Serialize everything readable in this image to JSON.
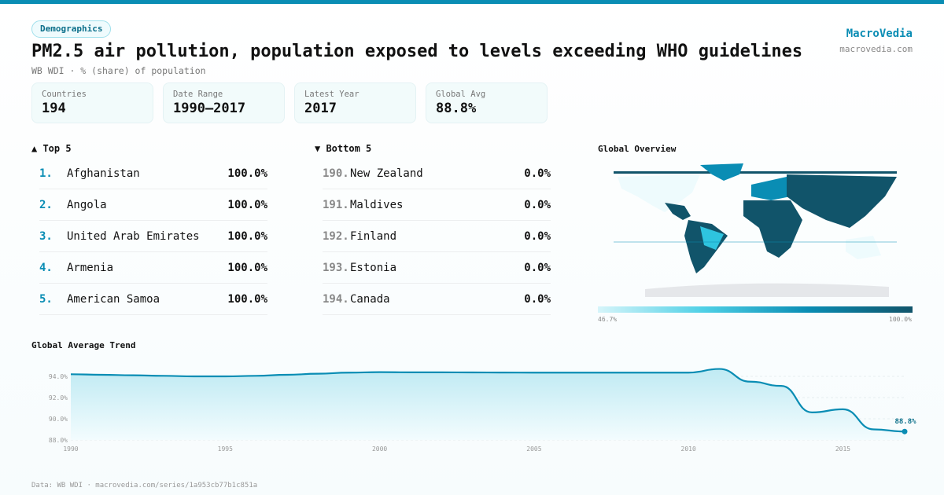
{
  "header": {
    "badge": "Demographics",
    "title": "PM2.5 air pollution, population exposed to levels exceeding WHO guidelines",
    "subtitle": "WB WDI · % (share) of population",
    "brand": "MacroVedia",
    "brand_url": "macrovedia.com"
  },
  "stats": [
    {
      "label": "Countries",
      "value": "194"
    },
    {
      "label": "Date Range",
      "value": "1990–2017"
    },
    {
      "label": "Latest Year",
      "value": "2017"
    },
    {
      "label": "Global Avg",
      "value": "88.8%"
    }
  ],
  "top5": {
    "heading": "▲ Top 5",
    "items": [
      {
        "rank": "1.",
        "name": "Afghanistan",
        "value": "100.0%"
      },
      {
        "rank": "2.",
        "name": "Angola",
        "value": "100.0%"
      },
      {
        "rank": "3.",
        "name": "United Arab Emirates",
        "value": "100.0%"
      },
      {
        "rank": "4.",
        "name": "Armenia",
        "value": "100.0%"
      },
      {
        "rank": "5.",
        "name": "American Samoa",
        "value": "100.0%"
      }
    ]
  },
  "bottom5": {
    "heading": "▼ Bottom 5",
    "items": [
      {
        "rank": "190.",
        "name": "New Zealand",
        "value": "0.0%"
      },
      {
        "rank": "191.",
        "name": "Maldives",
        "value": "0.0%"
      },
      {
        "rank": "192.",
        "name": "Finland",
        "value": "0.0%"
      },
      {
        "rank": "193.",
        "name": "Estonia",
        "value": "0.0%"
      },
      {
        "rank": "194.",
        "name": "Canada",
        "value": "0.0%"
      }
    ]
  },
  "map": {
    "heading": "Global Overview",
    "legend_min": "46.7%",
    "legend_max": "100.0%",
    "colors": {
      "low": "#d6f5fa",
      "mid": "#0a8db4",
      "high": "#11546a",
      "nodata": "#e5e7ea"
    }
  },
  "chart_data": {
    "type": "area",
    "title": "Global Average Trend",
    "x": [
      1990,
      1991,
      1992,
      1993,
      1994,
      1995,
      1996,
      1997,
      1998,
      1999,
      2000,
      2001,
      2002,
      2003,
      2004,
      2005,
      2006,
      2007,
      2008,
      2009,
      2010,
      2011,
      2012,
      2013,
      2014,
      2015,
      2016,
      2017
    ],
    "values": [
      94.2,
      94.15,
      94.1,
      94.05,
      94.0,
      94.0,
      94.05,
      94.15,
      94.25,
      94.35,
      94.4,
      94.38,
      94.38,
      94.37,
      94.36,
      94.35,
      94.35,
      94.35,
      94.35,
      94.35,
      94.35,
      94.7,
      93.5,
      93.1,
      90.6,
      90.9,
      89.0,
      88.8
    ],
    "ylim": [
      88,
      95.5
    ],
    "yticks": [
      "88.0%",
      "90.0%",
      "92.0%",
      "94.0%"
    ],
    "ytick_values": [
      88,
      90,
      92,
      94
    ],
    "xticks": [
      "1990",
      "1995",
      "2000",
      "2005",
      "2010",
      "2015"
    ],
    "xtick_values": [
      1990,
      1995,
      2000,
      2005,
      2010,
      2015
    ],
    "end_label": "88.8%",
    "grid": true,
    "color": "#0a8db4"
  },
  "footer": "Data: WB WDI · macrovedia.com/series/1a953cb77b1c851a"
}
